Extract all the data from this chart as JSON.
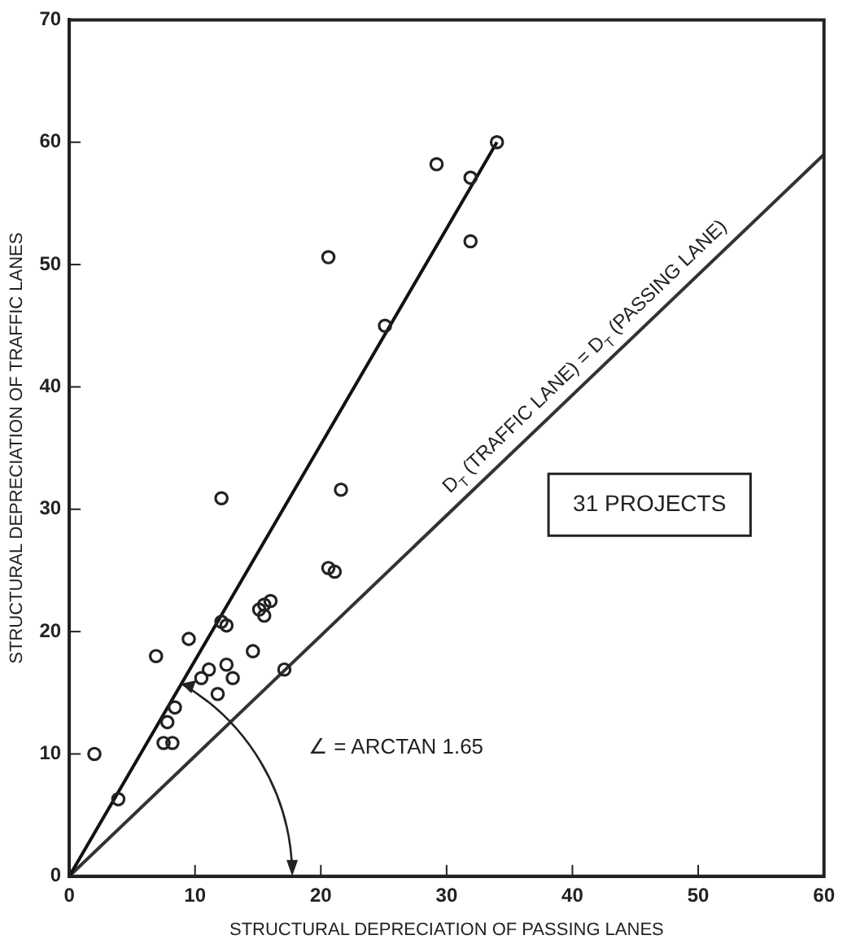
{
  "chart_data": {
    "type": "scatter",
    "xlabel": "STRUCTURAL DEPRECIATION OF PASSING LANES",
    "ylabel": "STRUCTURAL DEPRECIATION OF TRAFFIC LANES",
    "xlim": [
      0,
      60
    ],
    "xticks": [
      0,
      10,
      20,
      30,
      40,
      50,
      60
    ],
    "ylim": [
      0,
      70
    ],
    "yticks": [
      0,
      10,
      20,
      30,
      40,
      50,
      60,
      70
    ],
    "grid": false,
    "legend": false,
    "series": [
      {
        "marker": "circle",
        "color": "#222222",
        "x": [
          2,
          3.9,
          7.5,
          8.2,
          7.8,
          8.4,
          6.9,
          9.5,
          10.5,
          11.1,
          11.8,
          12.5,
          13,
          12.1,
          12.5,
          12.1,
          14.6,
          15.1,
          15.5,
          15.5,
          16,
          17.1,
          20.6,
          21.1,
          21.6,
          20.6,
          25.1,
          29.2,
          31.9,
          31.9,
          34
        ],
        "values": [
          10,
          6.3,
          10.9,
          10.9,
          12.6,
          13.8,
          18,
          19.4,
          16.2,
          16.9,
          14.9,
          17.3,
          16.2,
          20.8,
          20.5,
          30.9,
          18.4,
          21.8,
          21.3,
          22.2,
          22.5,
          16.9,
          25.2,
          24.9,
          31.6,
          50.6,
          45,
          58.2,
          57.1,
          51.9,
          60
        ]
      },
      {
        "type": "line",
        "marker": "none",
        "color": "#111111",
        "x": [
          0,
          34
        ],
        "values": [
          0,
          60
        ]
      },
      {
        "type": "line",
        "marker": "none",
        "color": "#333333",
        "x": [
          0,
          60
        ],
        "values": [
          0,
          59
        ]
      }
    ],
    "annotations": [
      {
        "text": "D$_{T}$ (TRAFFIC LANE) = D$_{T}$ (PASSING LANE)",
        "x": 42,
        "y": 41.4
      },
      "31 PROJECTS",
      "∠ = ARCTAN 1.65"
    ]
  }
}
